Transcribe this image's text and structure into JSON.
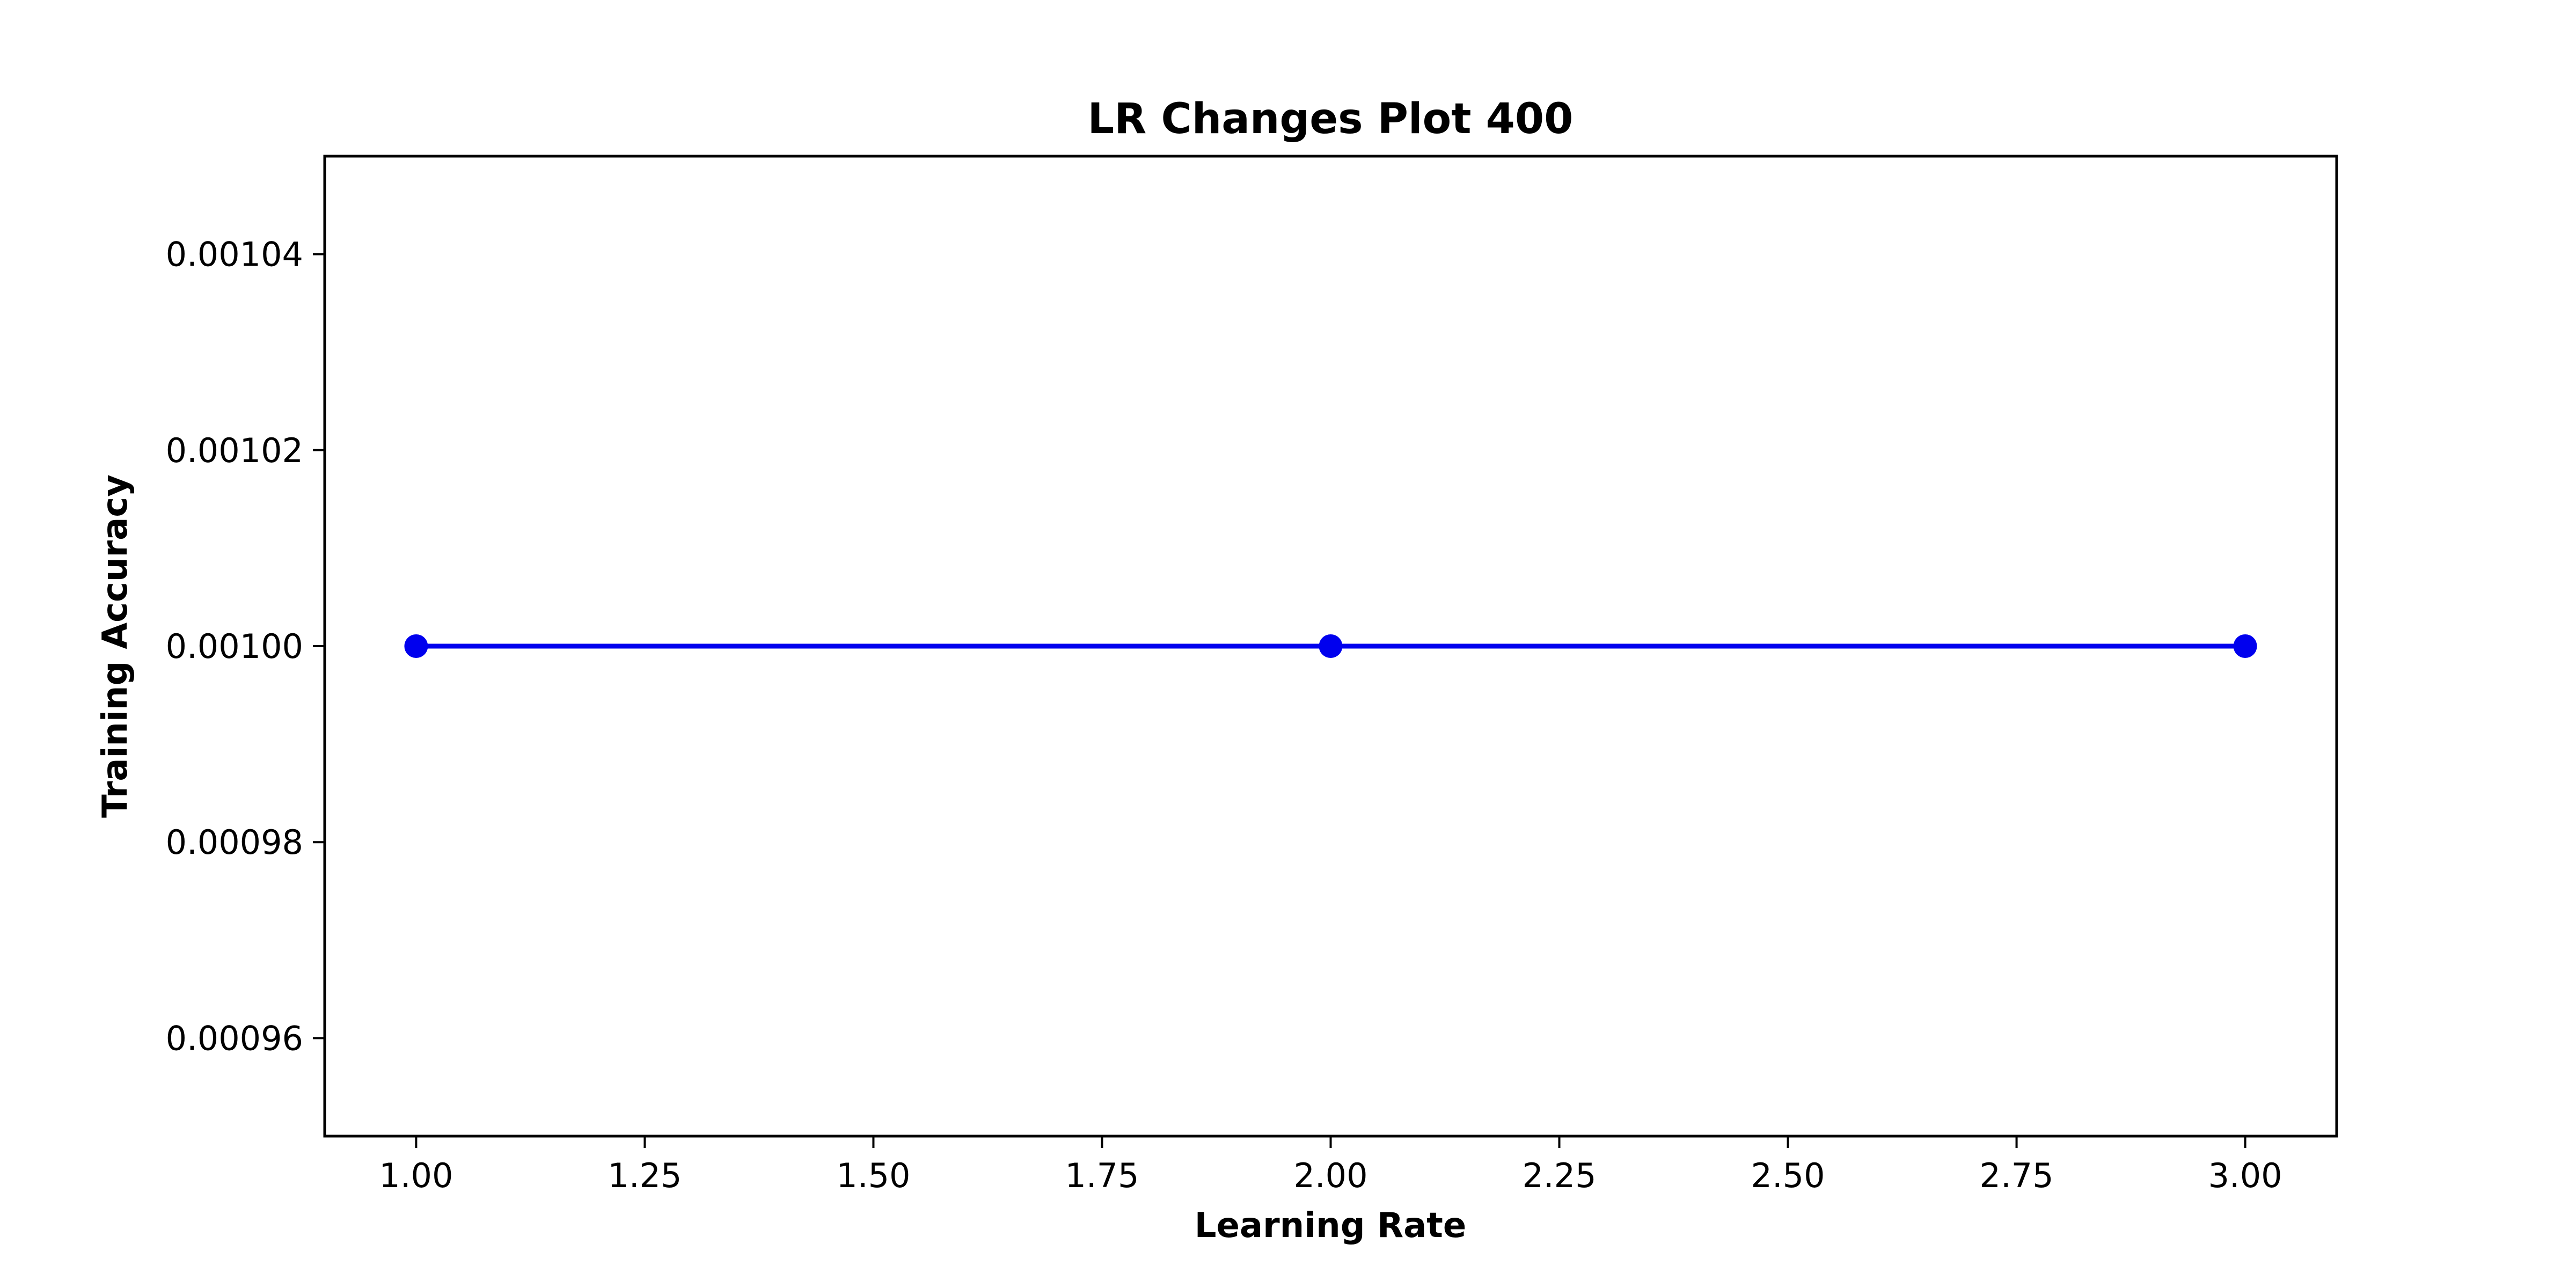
{
  "chart_data": {
    "type": "line",
    "title": "LR Changes Plot 400",
    "xlabel": "Learning Rate",
    "ylabel": "Training Accuracy",
    "x": [
      1.0,
      2.0,
      3.0
    ],
    "series": [
      {
        "values": [
          0.001,
          0.001,
          0.001
        ],
        "color": "#0000ee",
        "marker": "circle"
      }
    ],
    "xlim": [
      0.9,
      3.1
    ],
    "ylim": [
      0.00095,
      0.00105
    ],
    "x_ticks": [
      1.0,
      1.25,
      1.5,
      1.75,
      2.0,
      2.25,
      2.5,
      2.75,
      3.0
    ],
    "x_tick_labels": [
      "1.00",
      "1.25",
      "1.50",
      "1.75",
      "2.00",
      "2.25",
      "2.50",
      "2.75",
      "3.00"
    ],
    "y_ticks": [
      0.00096,
      0.00098,
      0.001,
      0.00102,
      0.00104
    ],
    "y_tick_labels": [
      "0.00096",
      "0.00098",
      "0.00100",
      "0.00102",
      "0.00104"
    ],
    "grid": false,
    "legend": "none"
  }
}
